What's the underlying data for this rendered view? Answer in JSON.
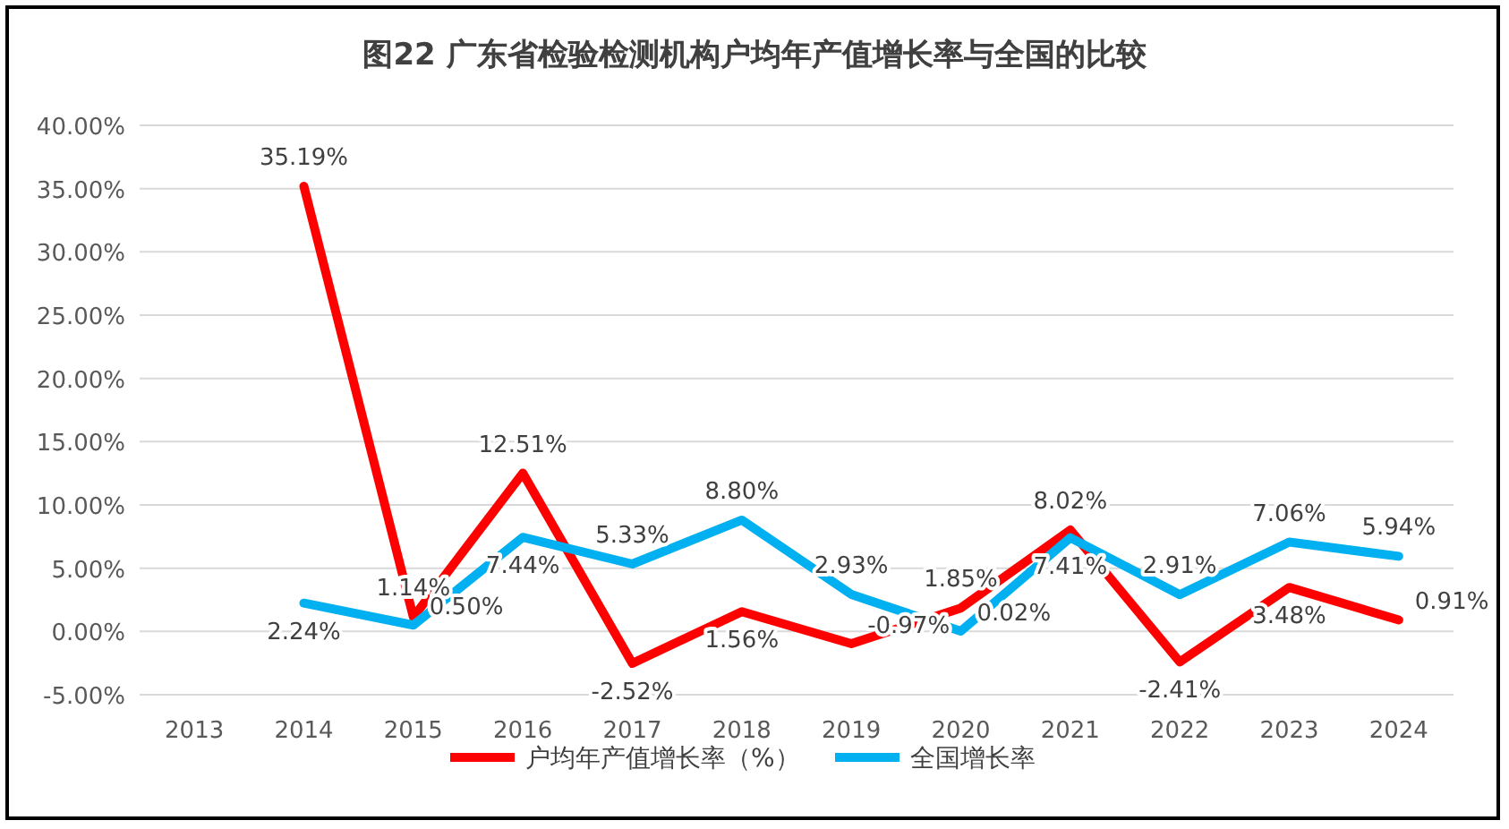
{
  "chart_data": {
    "type": "line",
    "title": "图22  广东省检验检测机构户均年产值增长率与全国的比较",
    "categories": [
      "2013",
      "2014",
      "2015",
      "2016",
      "2017",
      "2018",
      "2019",
      "2020",
      "2021",
      "2022",
      "2023",
      "2024"
    ],
    "series": [
      {
        "name": "户均年产值增长率（%）",
        "color": "#ff0000",
        "values": [
          null,
          35.19,
          1.14,
          12.51,
          -2.52,
          1.56,
          -0.97,
          1.85,
          8.02,
          -2.41,
          3.48,
          0.91
        ],
        "value_labels": [
          null,
          "35.19%",
          "1.14%",
          "12.51%",
          "-2.52%",
          "1.56%",
          "-0.97%",
          "1.85%",
          "8.02%",
          "-2.41%",
          "3.48%",
          "0.91%"
        ]
      },
      {
        "name": "全国增长率",
        "color": "#00b0f0",
        "values": [
          null,
          2.24,
          0.5,
          7.44,
          5.33,
          8.8,
          2.93,
          0.02,
          7.41,
          2.91,
          7.06,
          5.94
        ],
        "value_labels": [
          null,
          "2.24%",
          "0.50%",
          "7.44%",
          "5.33%",
          "8.80%",
          "2.93%",
          "0.02%",
          "7.41%",
          "2.91%",
          "7.06%",
          "5.94%"
        ]
      }
    ],
    "ylim": [
      -5,
      40
    ],
    "yticks": [
      {
        "value": -5,
        "label": "-5.00%"
      },
      {
        "value": 0,
        "label": "0.00%"
      },
      {
        "value": 5,
        "label": "5.00%"
      },
      {
        "value": 10,
        "label": "10.00%"
      },
      {
        "value": 15,
        "label": "15.00%"
      },
      {
        "value": 20,
        "label": "20.00%"
      },
      {
        "value": 25,
        "label": "25.00%"
      },
      {
        "value": 30,
        "label": "30.00%"
      },
      {
        "value": 35,
        "label": "35.00%"
      },
      {
        "value": 40,
        "label": "40.00%"
      }
    ],
    "grid": "y",
    "legend": "bottom",
    "marker": "none"
  }
}
